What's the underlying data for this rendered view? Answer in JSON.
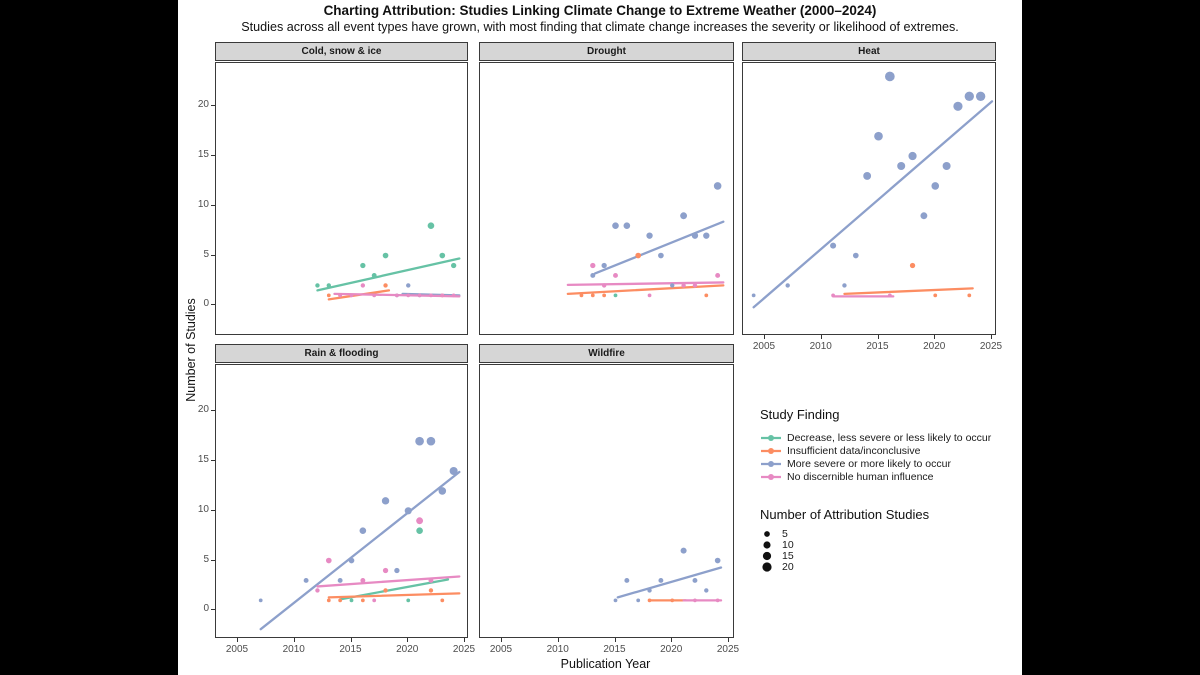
{
  "title": "Charting Attribution: Studies Linking Climate Change to Extreme Weather (2000–2024)",
  "subtitle": "Studies across all event types have grown, with most finding that climate change increases the severity or likelihood of extremes.",
  "legend": {
    "finding_title": "Study Finding",
    "finding_items": [
      {
        "series": "decrease",
        "label": "Decrease, less severe or less likely to occur"
      },
      {
        "series": "insufficient",
        "label": "Insufficient data/inconclusive"
      },
      {
        "series": "more_severe",
        "label": "More severe or more likely to occur"
      },
      {
        "series": "no_influence",
        "label": "No discernible human influence"
      }
    ],
    "size_title": "Number of Attribution Studies",
    "size_values": [
      5,
      10,
      15,
      20
    ]
  },
  "chart_data": {
    "type": "scatter",
    "title": "Charting Attribution: Studies Linking Climate Change to Extreme Weather (2000–2024)",
    "xlabel": "Publication Year",
    "ylabel": "Number of Studies",
    "x_ticks": [
      2005,
      2010,
      2015,
      2020,
      2025
    ],
    "y_ticks": [
      0,
      5,
      10,
      15,
      20
    ],
    "x_range": [
      2003,
      2025.6
    ],
    "y_range": [
      -3,
      24.5
    ],
    "grid": false,
    "legend_position": "bottom-right-empty-facet",
    "colors": {
      "decrease": "#66C2A5",
      "insufficient": "#FC8D62",
      "more_severe": "#8DA0CB",
      "no_influence": "#E78AC3"
    },
    "facets": [
      {
        "label": "Cold, snow & ice",
        "col": 0,
        "row": 0,
        "points": [
          {
            "series": "decrease",
            "data": [
              [
                2012,
                2
              ],
              [
                2013,
                2
              ],
              [
                2016,
                4
              ],
              [
                2017,
                3
              ],
              [
                2018,
                5
              ],
              [
                2022,
                8
              ],
              [
                2023,
                5
              ],
              [
                2024,
                4
              ]
            ]
          },
          {
            "series": "insufficient",
            "data": [
              [
                2013,
                1
              ],
              [
                2014,
                1
              ],
              [
                2018,
                2
              ],
              [
                2023,
                1
              ]
            ]
          },
          {
            "series": "more_severe",
            "data": [
              [
                2019,
                1
              ],
              [
                2020,
                2
              ],
              [
                2021,
                1
              ]
            ]
          },
          {
            "series": "no_influence",
            "data": [
              [
                2014,
                1
              ],
              [
                2015,
                1
              ],
              [
                2016,
                2
              ],
              [
                2017,
                1
              ],
              [
                2019,
                1
              ],
              [
                2020,
                1
              ],
              [
                2021,
                1
              ],
              [
                2022,
                1
              ],
              [
                2023,
                1
              ],
              [
                2024,
                1
              ]
            ]
          }
        ],
        "trends": [
          {
            "series": "decrease",
            "x1": 2012,
            "y1": 1.5,
            "x2": 2024.5,
            "y2": 4.7
          },
          {
            "series": "insufficient",
            "x1": 2013,
            "y1": 0.6,
            "x2": 2018.3,
            "y2": 1.5
          },
          {
            "series": "more_severe",
            "x1": 2019.5,
            "y1": 1.15,
            "x2": 2024.5,
            "y2": 1.0
          },
          {
            "series": "no_influence",
            "x1": 2013.5,
            "y1": 1.15,
            "x2": 2024.5,
            "y2": 0.9
          }
        ]
      },
      {
        "label": "Drought",
        "col": 1,
        "row": 0,
        "points": [
          {
            "series": "more_severe",
            "data": [
              [
                2013,
                3
              ],
              [
                2014,
                4
              ],
              [
                2015,
                8
              ],
              [
                2016,
                8
              ],
              [
                2018,
                7
              ],
              [
                2019,
                5
              ],
              [
                2020,
                2
              ],
              [
                2021,
                9
              ],
              [
                2022,
                7
              ],
              [
                2023,
                7
              ],
              [
                2024,
                12
              ]
            ]
          },
          {
            "series": "insufficient",
            "data": [
              [
                2012,
                1
              ],
              [
                2013,
                1
              ],
              [
                2014,
                1
              ],
              [
                2017,
                5
              ],
              [
                2023,
                1
              ]
            ]
          },
          {
            "series": "no_influence",
            "data": [
              [
                2013,
                4
              ],
              [
                2014,
                2
              ],
              [
                2015,
                3
              ],
              [
                2018,
                1
              ],
              [
                2021,
                2
              ],
              [
                2022,
                2
              ],
              [
                2024,
                3
              ]
            ]
          },
          {
            "series": "decrease",
            "data": [
              [
                2015,
                1
              ]
            ]
          }
        ],
        "trends": [
          {
            "series": "more_severe",
            "x1": 2013.2,
            "y1": 3.2,
            "x2": 2024.5,
            "y2": 8.4
          },
          {
            "series": "no_influence",
            "x1": 2010.8,
            "y1": 2.05,
            "x2": 2024.5,
            "y2": 2.3
          },
          {
            "series": "insufficient",
            "x1": 2010.8,
            "y1": 1.15,
            "x2": 2024.5,
            "y2": 2.0
          }
        ]
      },
      {
        "label": "Heat",
        "col": 2,
        "row": 0,
        "points": [
          {
            "series": "more_severe",
            "data": [
              [
                2004,
                1
              ],
              [
                2007,
                2
              ],
              [
                2011,
                6
              ],
              [
                2012,
                2
              ],
              [
                2013,
                5
              ],
              [
                2014,
                13
              ],
              [
                2015,
                17
              ],
              [
                2016,
                23
              ],
              [
                2017,
                14
              ],
              [
                2018,
                15
              ],
              [
                2019,
                9
              ],
              [
                2020,
                12
              ],
              [
                2021,
                14
              ],
              [
                2022,
                20
              ],
              [
                2023,
                21
              ],
              [
                2024,
                21
              ]
            ]
          },
          {
            "series": "insufficient",
            "data": [
              [
                2018,
                4
              ],
              [
                2020,
                1
              ],
              [
                2023,
                1
              ]
            ]
          },
          {
            "series": "no_influence",
            "data": [
              [
                2011,
                1
              ],
              [
                2016,
                1
              ]
            ]
          }
        ],
        "trends": [
          {
            "series": "more_severe",
            "x1": 2004,
            "y1": -0.2,
            "x2": 2025,
            "y2": 20.5
          },
          {
            "series": "insufficient",
            "x1": 2012,
            "y1": 1.15,
            "x2": 2023.3,
            "y2": 1.7
          },
          {
            "series": "no_influence",
            "x1": 2011,
            "y1": 0.9,
            "x2": 2016.3,
            "y2": 0.9
          }
        ]
      },
      {
        "label": "Rain & flooding",
        "col": 0,
        "row": 1,
        "points": [
          {
            "series": "more_severe",
            "data": [
              [
                2007,
                1
              ],
              [
                2011,
                3
              ],
              [
                2014,
                3
              ],
              [
                2015,
                5
              ],
              [
                2016,
                8
              ],
              [
                2018,
                11
              ],
              [
                2019,
                4
              ],
              [
                2020,
                10
              ],
              [
                2021,
                17
              ],
              [
                2022,
                17
              ],
              [
                2023,
                12
              ],
              [
                2024,
                14
              ]
            ]
          },
          {
            "series": "no_influence",
            "data": [
              [
                2012,
                2
              ],
              [
                2013,
                5
              ],
              [
                2016,
                3
              ],
              [
                2017,
                1
              ],
              [
                2018,
                4
              ],
              [
                2021,
                9
              ],
              [
                2022,
                3
              ]
            ]
          },
          {
            "series": "decrease",
            "data": [
              [
                2015,
                1
              ],
              [
                2020,
                1
              ],
              [
                2021,
                8
              ]
            ]
          },
          {
            "series": "insufficient",
            "data": [
              [
                2013,
                1
              ],
              [
                2014,
                1
              ],
              [
                2016,
                1
              ],
              [
                2018,
                2
              ],
              [
                2022,
                2
              ],
              [
                2023,
                1
              ]
            ]
          }
        ],
        "trends": [
          {
            "series": "more_severe",
            "x1": 2007,
            "y1": -1.9,
            "x2": 2024.5,
            "y2": 13.9
          },
          {
            "series": "no_influence",
            "x1": 2012,
            "y1": 2.4,
            "x2": 2024.5,
            "y2": 3.4
          },
          {
            "series": "decrease",
            "x1": 2014,
            "y1": 1.1,
            "x2": 2023.5,
            "y2": 3.1
          },
          {
            "series": "insufficient",
            "x1": 2013,
            "y1": 1.3,
            "x2": 2024.5,
            "y2": 1.7
          }
        ]
      },
      {
        "label": "Wildfire",
        "col": 1,
        "row": 1,
        "points": [
          {
            "series": "more_severe",
            "data": [
              [
                2015,
                1
              ],
              [
                2016,
                3
              ],
              [
                2017,
                1
              ],
              [
                2018,
                2
              ],
              [
                2019,
                3
              ],
              [
                2021,
                6
              ],
              [
                2022,
                3
              ],
              [
                2023,
                2
              ],
              [
                2024,
                5
              ]
            ]
          },
          {
            "series": "insufficient",
            "data": [
              [
                2018,
                1
              ],
              [
                2020,
                1
              ]
            ]
          },
          {
            "series": "no_influence",
            "data": [
              [
                2022,
                1
              ],
              [
                2024,
                1
              ]
            ]
          }
        ],
        "trends": [
          {
            "series": "more_severe",
            "x1": 2015.2,
            "y1": 1.3,
            "x2": 2024.3,
            "y2": 4.3
          },
          {
            "series": "insufficient",
            "x1": 2018,
            "y1": 1.0,
            "x2": 2021.2,
            "y2": 1.0
          },
          {
            "series": "no_influence",
            "x1": 2021,
            "y1": 1.0,
            "x2": 2024.3,
            "y2": 1.0
          }
        ]
      }
    ]
  }
}
